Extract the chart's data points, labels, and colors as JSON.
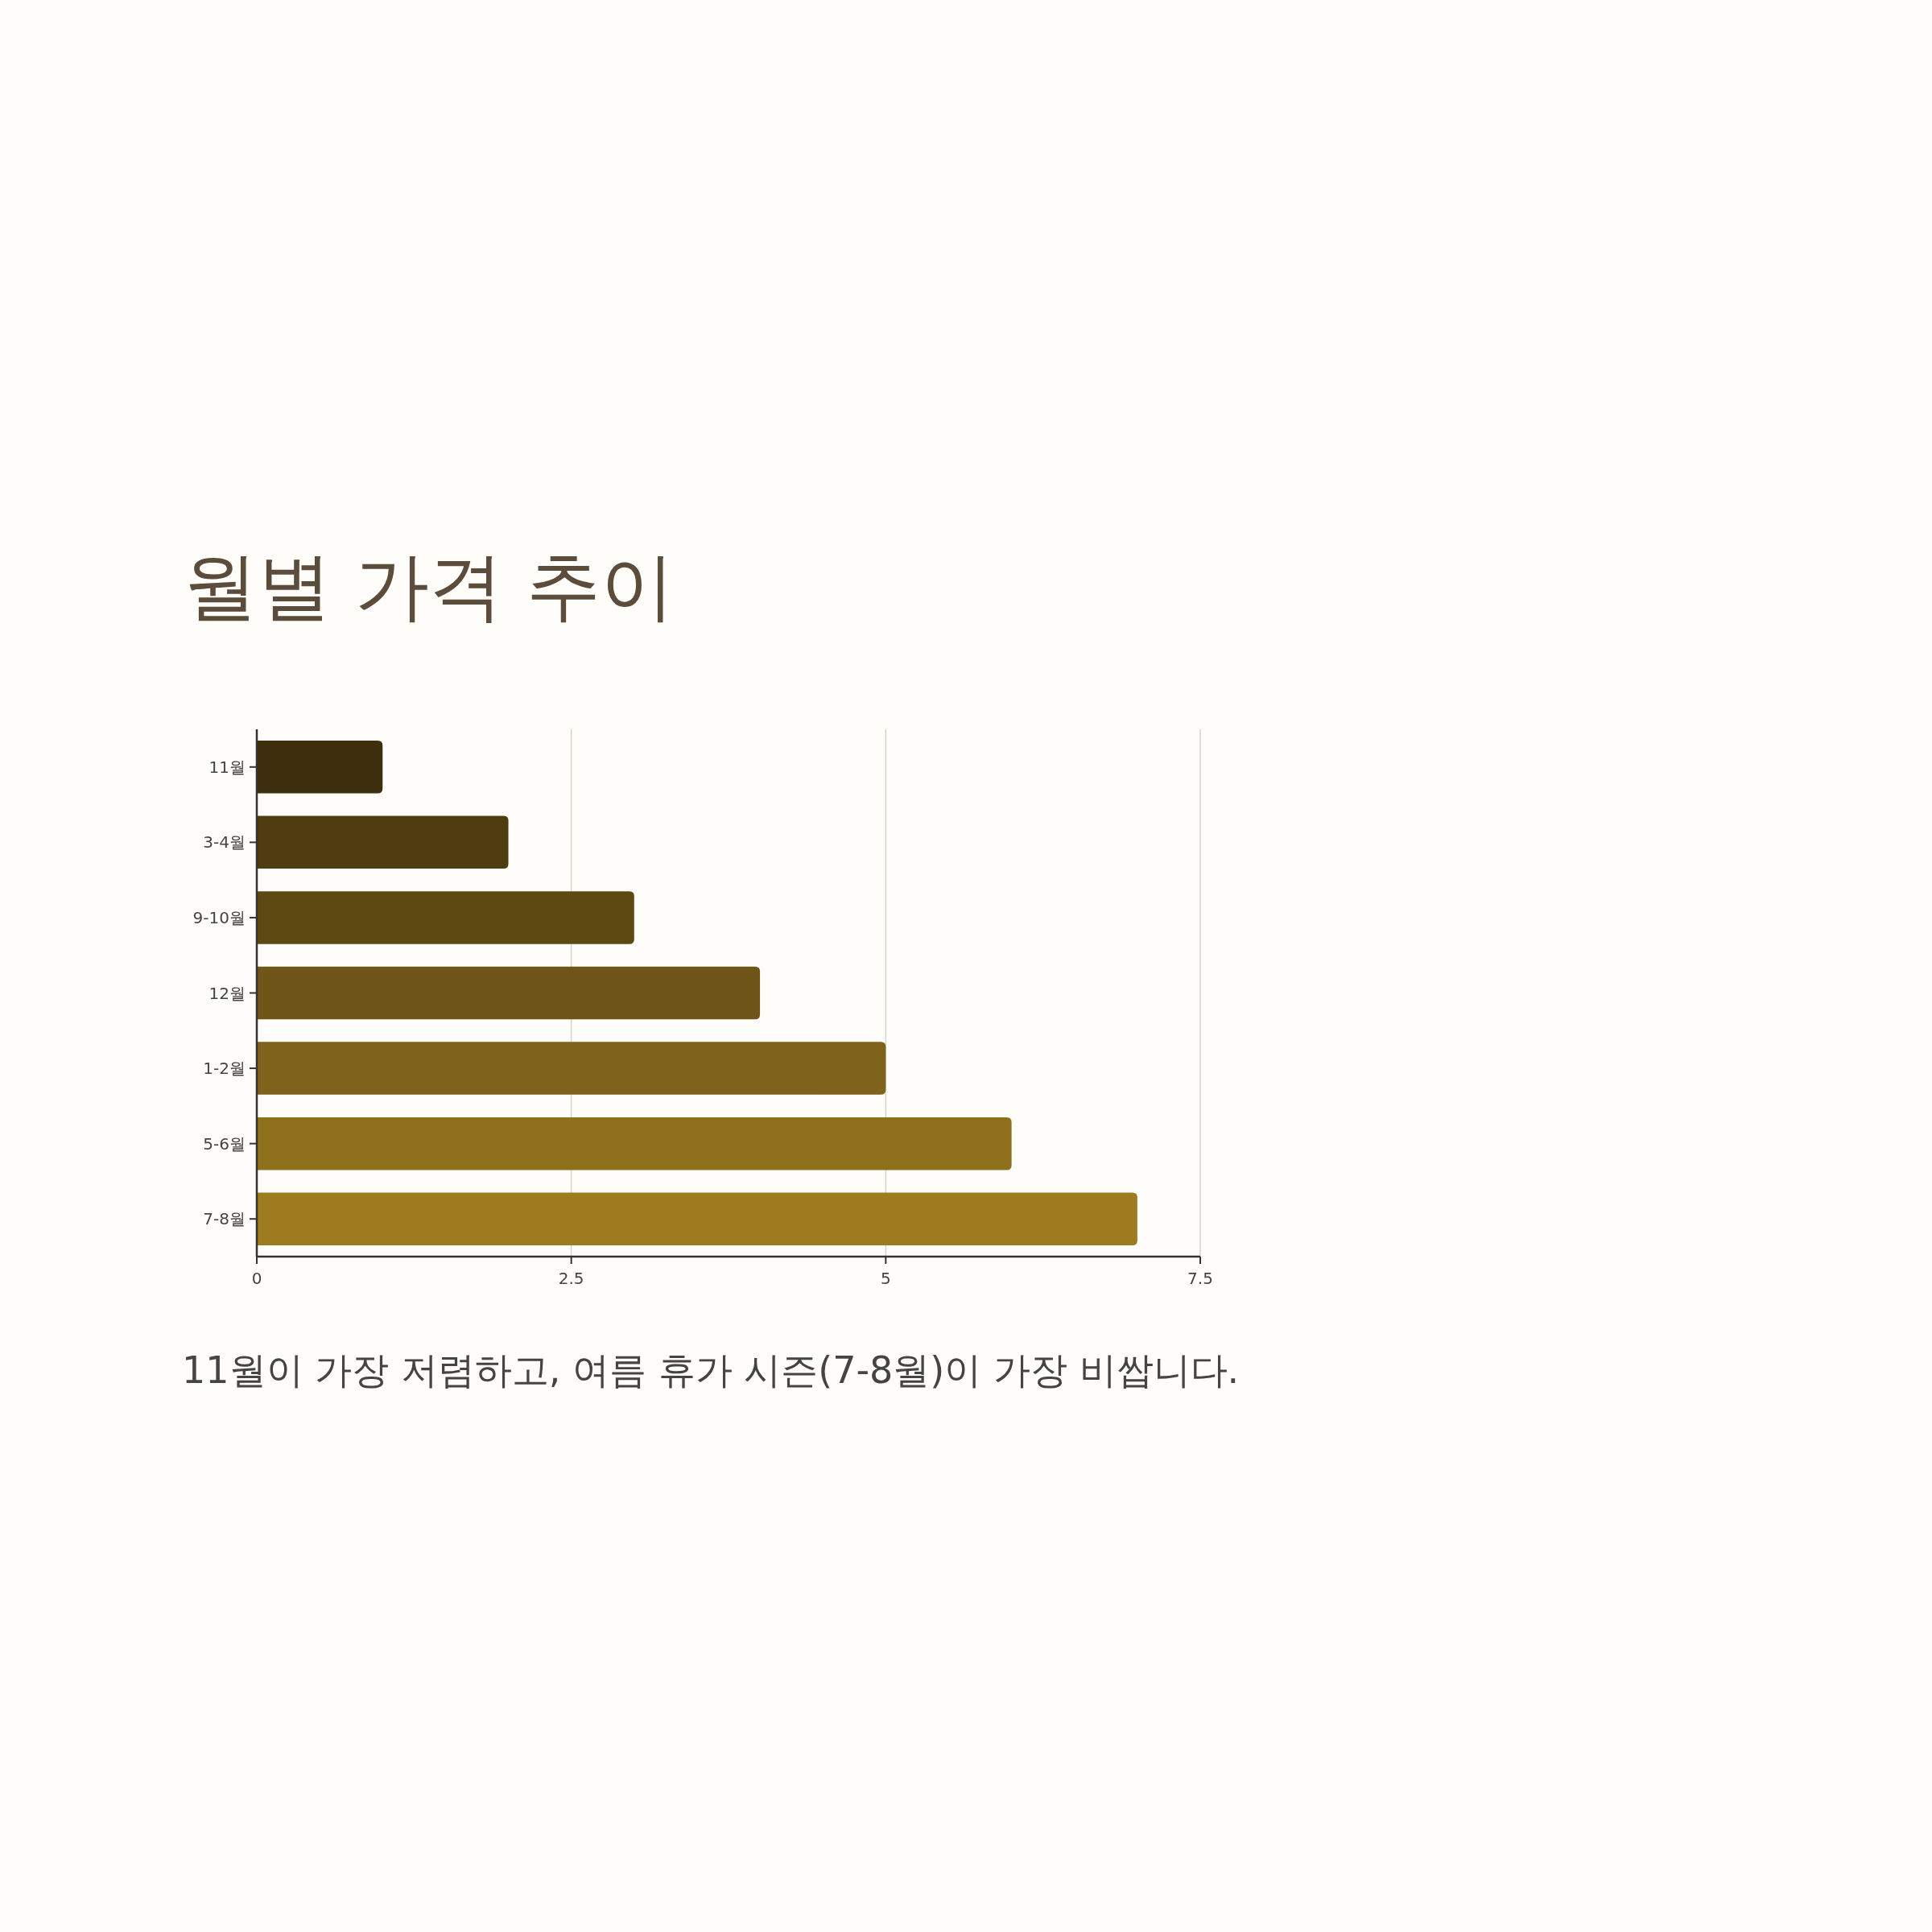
{
  "chart_data": {
    "type": "bar",
    "orientation": "horizontal",
    "title": "월별 가격 추이",
    "categories": [
      "11월",
      "3-4월",
      "9-10월",
      "12월",
      "1-2월",
      "5-6월",
      "7-8월"
    ],
    "values": [
      1,
      2,
      3,
      4,
      5,
      6,
      7
    ],
    "colors": [
      "#3d2f0d",
      "#4f3c10",
      "#5f4913",
      "#6f5517",
      "#7f621b",
      "#8f701d",
      "#9f7b1f"
    ],
    "xlim": [
      0,
      7.5
    ],
    "xticks": [
      0,
      2.5,
      5,
      7.5
    ],
    "grid": "x",
    "annotations": [
      "11월이 가장 저렴하고, 여름 휴가 시즌(7-8월)이 가장 비쌉니다."
    ]
  }
}
